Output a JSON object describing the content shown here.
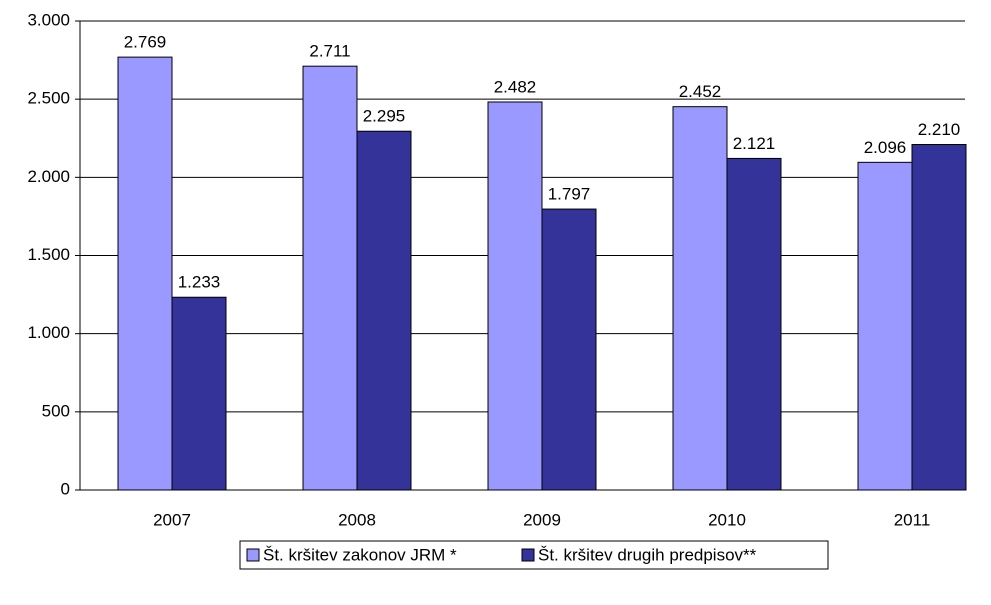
{
  "chart_data": {
    "type": "bar",
    "categories": [
      "2007",
      "2008",
      "2009",
      "2010",
      "2011"
    ],
    "series": [
      {
        "name": "Št. kršitev zakonov JRM *",
        "color": "#9999ff",
        "values": [
          2769,
          2711,
          2482,
          2452,
          2096
        ],
        "value_labels": [
          "2.769",
          "2.711",
          "2.482",
          "2.452",
          "2.096"
        ]
      },
      {
        "name": "Št. kršitev drugih predpisov**",
        "color": "#333399",
        "values": [
          1233,
          2295,
          1797,
          2121,
          2210
        ],
        "value_labels": [
          "1.233",
          "2.295",
          "1.797",
          "2.121",
          "2.210"
        ]
      }
    ],
    "ylim": [
      0,
      3000
    ],
    "yticks": [
      0,
      500,
      {
        "value": 1000,
        "label": "1.000"
      },
      {
        "value": 1500,
        "label": "1.500"
      },
      {
        "value": 2000,
        "label": "2.000"
      },
      {
        "value": 2500,
        "label": "2.500"
      },
      {
        "value": 3000,
        "label": "3.000"
      }
    ],
    "grid": true
  }
}
